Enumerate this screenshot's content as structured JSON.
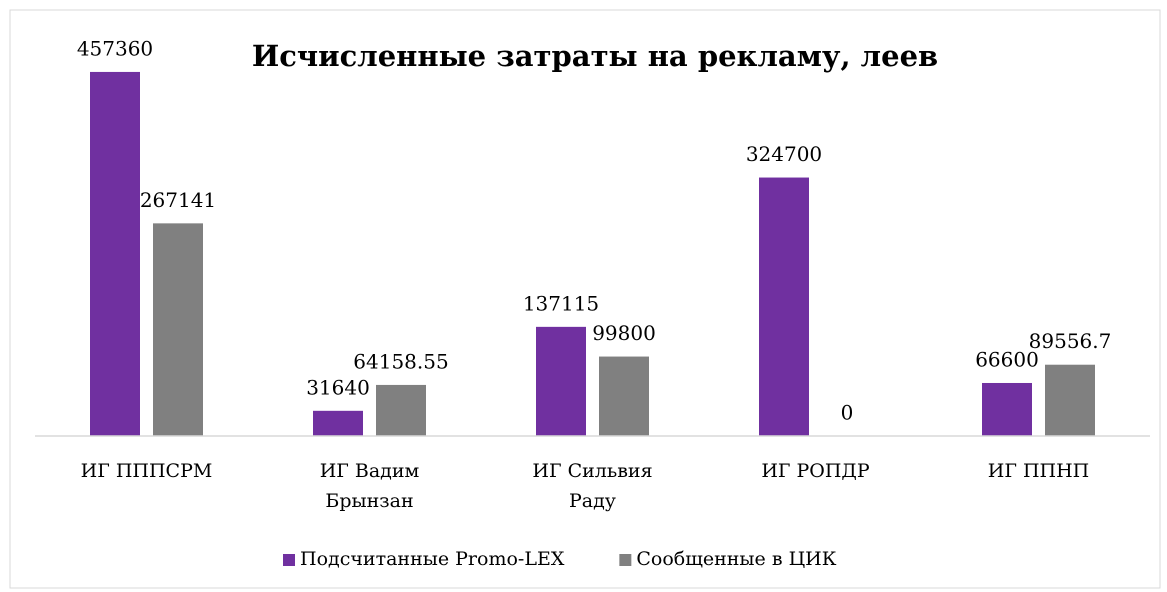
{
  "chart_data": {
    "type": "bar",
    "title": "Исчисленные затраты на рекламу, леев",
    "categories": [
      "ИГ ПППСРМ",
      "ИГ Вадим Брынзан",
      "ИГ Сильвия Раду",
      "ИГ РОПДР",
      "ИГ ППНП"
    ],
    "series": [
      {
        "name": "Подсчитанные Promo-LEX",
        "color": "#7030a0",
        "values": [
          457360,
          31640,
          137115,
          324700,
          66600
        ]
      },
      {
        "name": "Сообщенные в ЦИК",
        "color": "#808080",
        "values": [
          267141,
          64158.55,
          99800,
          0,
          89556.7
        ]
      }
    ],
    "ylim": [
      0,
      500000
    ],
    "grid": false,
    "legend": "bottom"
  }
}
